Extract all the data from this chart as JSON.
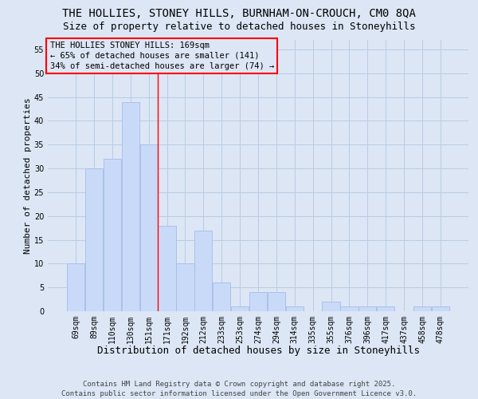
{
  "title1": "THE HOLLIES, STONEY HILLS, BURNHAM-ON-CROUCH, CM0 8QA",
  "title2": "Size of property relative to detached houses in Stoneyhills",
  "xlabel": "Distribution of detached houses by size in Stoneyhills",
  "ylabel": "Number of detached properties",
  "categories": [
    "69sqm",
    "89sqm",
    "110sqm",
    "130sqm",
    "151sqm",
    "171sqm",
    "192sqm",
    "212sqm",
    "233sqm",
    "253sqm",
    "274sqm",
    "294sqm",
    "314sqm",
    "335sqm",
    "355sqm",
    "376sqm",
    "396sqm",
    "417sqm",
    "437sqm",
    "458sqm",
    "478sqm"
  ],
  "values": [
    10,
    30,
    32,
    44,
    35,
    18,
    10,
    17,
    6,
    1,
    4,
    4,
    1,
    0,
    2,
    1,
    1,
    1,
    0,
    1,
    1
  ],
  "bar_color": "#c9daf8",
  "bar_edge_color": "#a4bde6",
  "grid_color": "#b8cce4",
  "background_color": "#dce6f5",
  "annotation_box_text": "THE HOLLIES STONEY HILLS: 169sqm\n← 65% of detached houses are smaller (141)\n34% of semi-detached houses are larger (74) →",
  "redline_index": 5,
  "ylim": [
    0,
    57
  ],
  "yticks": [
    0,
    5,
    10,
    15,
    20,
    25,
    30,
    35,
    40,
    45,
    50,
    55
  ],
  "footer": "Contains HM Land Registry data © Crown copyright and database right 2025.\nContains public sector information licensed under the Open Government Licence v3.0.",
  "title_fontsize": 10,
  "subtitle_fontsize": 9,
  "xlabel_fontsize": 9,
  "ylabel_fontsize": 8,
  "tick_fontsize": 7,
  "annotation_fontsize": 7.5,
  "footer_fontsize": 6.5
}
